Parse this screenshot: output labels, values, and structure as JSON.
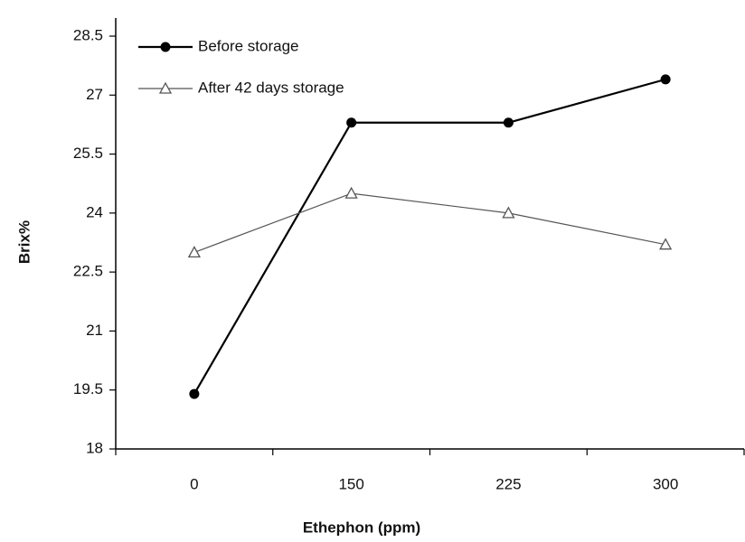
{
  "chart_data": {
    "type": "line",
    "xlabel": "Ethephon (ppm)",
    "ylabel": "Brix%",
    "categories": [
      "0",
      "150",
      "225",
      "300"
    ],
    "series": [
      {
        "name": "Before storage",
        "color": "#000000",
        "marker": "circle",
        "values": [
          19.4,
          26.3,
          26.3,
          27.4
        ]
      },
      {
        "name": "After 42 days storage",
        "color": "#555555",
        "marker": "triangle",
        "values": [
          23.0,
          24.5,
          24.0,
          23.2
        ]
      }
    ],
    "ylim": [
      18,
      28.5
    ],
    "yticks": [
      18,
      19.5,
      21,
      22.5,
      24,
      25.5,
      27,
      28.5
    ],
    "legend": "upper left",
    "grid": false
  }
}
